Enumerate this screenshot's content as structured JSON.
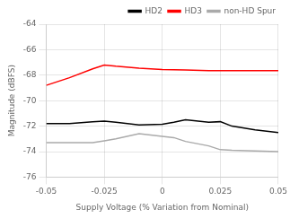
{
  "chart_data": {
    "type": "line",
    "xlabel": "Supply Voltage (% Variation from Nominal)",
    "ylabel": "Magnitude (dBFS)",
    "xlim": [
      -0.05,
      0.05
    ],
    "xticks": [
      -0.05,
      -0.025,
      0,
      0.025,
      0.05
    ],
    "ylim": [
      -76,
      -64
    ],
    "yticks": [
      -76,
      -74,
      -72,
      -70,
      -68,
      -66,
      -64
    ],
    "grid": true,
    "legend": "upper right",
    "series": [
      {
        "name": "HD2",
        "color": "#000000",
        "x": [
          -0.05,
          -0.04,
          -0.03,
          -0.025,
          -0.02,
          -0.01,
          0,
          0.005,
          0.01,
          0.02,
          0.025,
          0.03,
          0.04,
          0.05
        ],
        "values": [
          -71.8,
          -71.8,
          -71.65,
          -71.6,
          -71.7,
          -71.9,
          -71.85,
          -71.7,
          -71.5,
          -71.7,
          -71.65,
          -72.0,
          -72.3,
          -72.5
        ]
      },
      {
        "name": "HD3",
        "color": "#ff0000",
        "x": [
          -0.05,
          -0.04,
          -0.03,
          -0.025,
          -0.02,
          -0.01,
          0,
          0.01,
          0.02,
          0.025,
          0.03,
          0.04,
          0.05
        ],
        "values": [
          -68.8,
          -68.2,
          -67.5,
          -67.2,
          -67.3,
          -67.45,
          -67.55,
          -67.6,
          -67.65,
          -67.65,
          -67.65,
          -67.65,
          -67.65
        ]
      },
      {
        "name": "non-HD Spur",
        "color": "#aaaaaa",
        "x": [
          -0.05,
          -0.04,
          -0.03,
          -0.025,
          -0.02,
          -0.01,
          0,
          0.005,
          0.01,
          0.02,
          0.025,
          0.03,
          0.04,
          0.05
        ],
        "values": [
          -73.3,
          -73.3,
          -73.3,
          -73.15,
          -73.0,
          -72.6,
          -72.8,
          -72.9,
          -73.2,
          -73.55,
          -73.85,
          -73.9,
          -73.95,
          -74.0
        ]
      }
    ]
  }
}
